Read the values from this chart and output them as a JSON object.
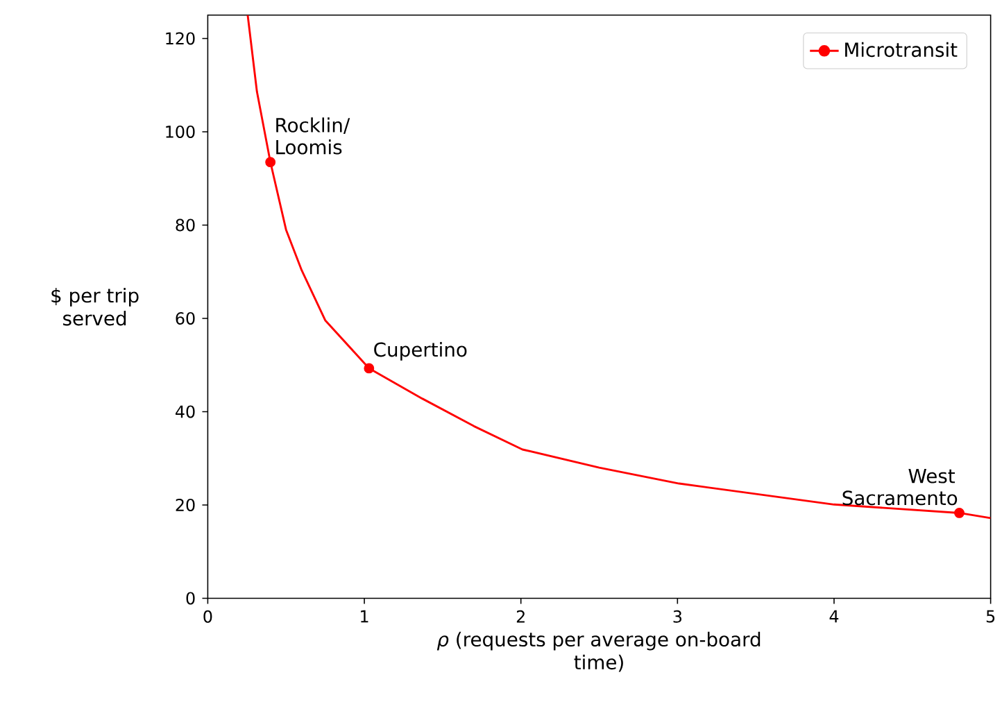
{
  "chart_data": {
    "type": "line",
    "xlabel": "*ρ* (requests per average on-board time)",
    "ylabel": "$ per trip served",
    "series": [
      {
        "name": "Microtransit",
        "color": "#ff0000",
        "marker": "none",
        "x": [
          0.255,
          0.314,
          0.4,
          0.5,
          0.6,
          0.75,
          1.03,
          1.37,
          1.7,
          2.01,
          2.5,
          3.01,
          4.0,
          4.8,
          5.0
        ],
        "values": [
          125,
          108.6,
          93.5,
          79,
          70.3,
          59.6,
          49.3,
          42.8,
          36.9,
          31.9,
          28.0,
          24.6,
          20.1,
          18.3,
          17.2
        ]
      },
      {
        "type": "scatter",
        "color": "#ff0000",
        "marker": "circle",
        "x": [
          0.4,
          1.03,
          4.8
        ],
        "values": [
          93.5,
          49.3,
          18.3
        ]
      }
    ],
    "annotations": [
      {
        "text": "Rocklin/ Loomis",
        "x": 0.4,
        "y": 93.5
      },
      {
        "text": "Cupertino",
        "x": 1.03,
        "y": 49.3
      },
      {
        "text": "West Sacramento",
        "x": 4.8,
        "y": 18.3
      }
    ],
    "xlim": [
      0,
      5
    ],
    "ylim": [
      0,
      125
    ],
    "xticks": [
      0,
      1,
      2,
      3,
      4,
      5
    ],
    "yticks": [
      0,
      20,
      40,
      60,
      80,
      100,
      120
    ],
    "grid": false,
    "legend": "top right"
  }
}
